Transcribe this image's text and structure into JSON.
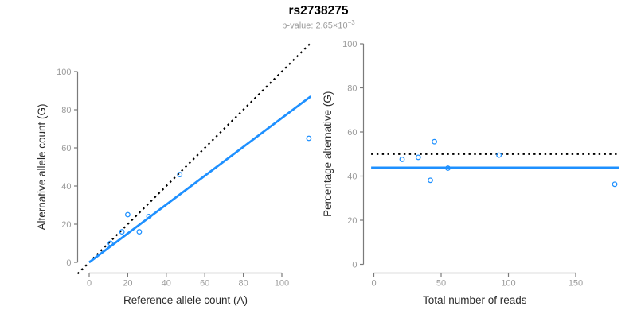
{
  "header": {
    "title": "rs2738275",
    "subtitle_base": "p-value: 2.65×10",
    "subtitle_exponent": "−3"
  },
  "colors": {
    "accent_blue": "#1E90FF",
    "dotted_black": "#000000",
    "axis_line": "#7a7a7a",
    "tick_label": "#9b9b9b",
    "axis_title": "#2b2b2b"
  },
  "chart_data": [
    {
      "type": "scatter",
      "id": "allele-count-panel",
      "xlabel": "Reference allele count (A)",
      "ylabel": "Alternative allele count (G)",
      "xticks": [
        0,
        20,
        40,
        60,
        80,
        100
      ],
      "yticks": [
        0,
        20,
        40,
        60,
        80,
        100
      ],
      "xlim": [
        -6,
        117
      ],
      "ylim": [
        -6,
        115
      ],
      "grid": false,
      "legend": null,
      "points": [
        [
          11,
          10
        ],
        [
          17,
          16
        ],
        [
          20,
          25
        ],
        [
          26,
          16
        ],
        [
          31,
          24
        ],
        [
          47,
          46
        ],
        [
          114,
          65
        ]
      ],
      "lines": [
        {
          "name": "identity-line",
          "style": "dotted",
          "color": "#000000",
          "x1": -6,
          "y1": -6,
          "x2": 114.5,
          "y2": 114.5
        },
        {
          "name": "fit-line",
          "style": "solid",
          "color": "#1E90FF",
          "x1": 0,
          "y1": 0,
          "x2": 115,
          "y2": 87
        }
      ]
    },
    {
      "type": "scatter",
      "id": "percentage-panel",
      "xlabel": "Total number of reads",
      "ylabel": "Percentage alternative (G)",
      "xticks": [
        0,
        50,
        100,
        150
      ],
      "yticks": [
        0,
        20,
        40,
        60,
        80,
        100
      ],
      "xlim": [
        -2,
        184
      ],
      "ylim": [
        0,
        100
      ],
      "grid": false,
      "legend": null,
      "points": [
        [
          21,
          47.6
        ],
        [
          33,
          48.5
        ],
        [
          42,
          38.1
        ],
        [
          45,
          55.6
        ],
        [
          55,
          43.6
        ],
        [
          93,
          49.5
        ],
        [
          179,
          36.3
        ]
      ],
      "lines": [
        {
          "name": "expected-50pct-line",
          "style": "dotted",
          "color": "#000000",
          "x1": -2,
          "y1": 50,
          "x2": 183,
          "y2": 50
        },
        {
          "name": "observed-ratio-line",
          "style": "solid",
          "color": "#1E90FF",
          "x1": -2,
          "y1": 43.8,
          "x2": 182,
          "y2": 43.8
        }
      ]
    }
  ]
}
